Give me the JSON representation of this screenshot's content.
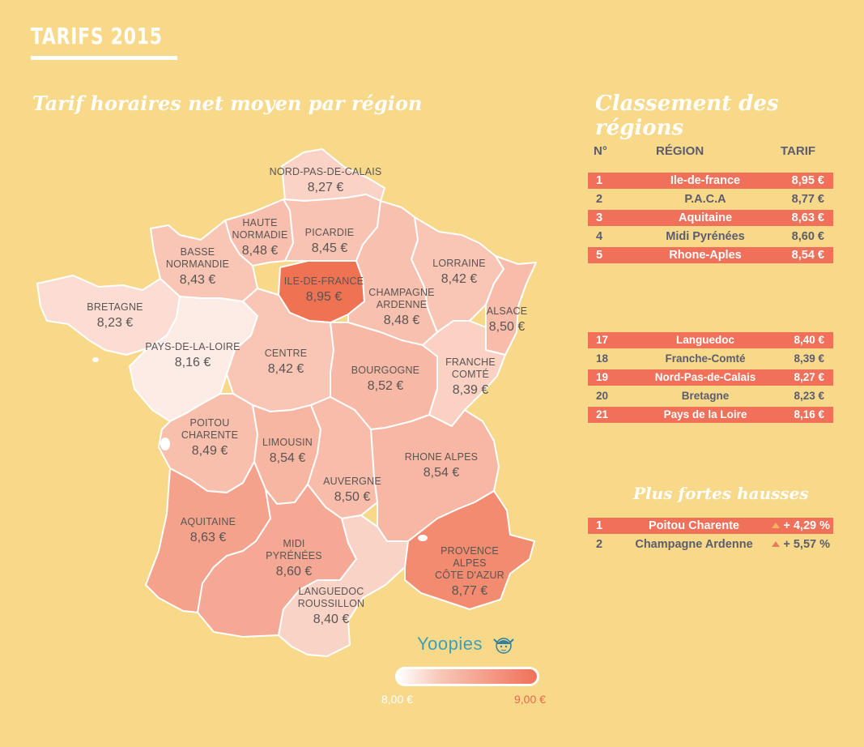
{
  "header": {
    "title": "TARIFS 2015"
  },
  "map": {
    "title": "Tarif horaires net moyen par région",
    "regions": [
      {
        "name": "NORD-PAS-DE-CALAIS",
        "value": "8,27 €",
        "color": "#fbd3c6"
      },
      {
        "name": "HAUTE\nNORMADIE",
        "value": "8,48 €",
        "color": "#f8bfae"
      },
      {
        "name": "PICARDIE",
        "value": "8,45 €",
        "color": "#f8c3b2"
      },
      {
        "name": "BASSE\nNORMANDIE",
        "value": "8,43 €",
        "color": "#f9c5b4"
      },
      {
        "name": "ILE-DE-FRANCE",
        "value": "8,95 €",
        "color": "#ef7252"
      },
      {
        "name": "CHAMPAGNE\nARDENNE",
        "value": "8,48 €",
        "color": "#f8c0ae"
      },
      {
        "name": "LORRAINE",
        "value": "8,42 €",
        "color": "#f9c6b6"
      },
      {
        "name": "ALSACE",
        "value": "8,50 €",
        "color": "#f8bcab"
      },
      {
        "name": "BRETAGNE",
        "value": "8,23 €",
        "color": "#fcdcd3"
      },
      {
        "name": "PAYS-DE-LA-LOIRE",
        "value": "8,16 €",
        "color": "#fdebe6"
      },
      {
        "name": "CENTRE",
        "value": "8,42 €",
        "color": "#f9c6b6"
      },
      {
        "name": "BOURGOGNE",
        "value": "8,52 €",
        "color": "#f7b9a6"
      },
      {
        "name": "FRANCHE\nCOMTÉ",
        "value": "8,39 €",
        "color": "#fad1c3"
      },
      {
        "name": "POITOU\nCHARENTE",
        "value": "8,49 €",
        "color": "#f8bfad"
      },
      {
        "name": "LIMOUSIN",
        "value": "8,54 €",
        "color": "#f7b6a2"
      },
      {
        "name": "RHONE ALPES",
        "value": "8,54 €",
        "color": "#f7b7a4"
      },
      {
        "name": "AUVERGNE",
        "value": "8,50 €",
        "color": "#f8bcab"
      },
      {
        "name": "AQUITAINE",
        "value": "8,63 €",
        "color": "#f4a28c"
      },
      {
        "name": "MIDI\nPYRÉNÉES",
        "value": "8,60 €",
        "color": "#f5a894"
      },
      {
        "name": "PROVENCE\nALPES\nCÔTE D'AZUR",
        "value": "8,77 €",
        "color": "#f28b6f"
      },
      {
        "name": "LANGUEDOC\nROUSSILLON",
        "value": "8,40 €",
        "color": "#fad3c7"
      }
    ]
  },
  "ranking": {
    "title": "Classement des régions",
    "headers": {
      "rank": "N°",
      "region": "RÉGION",
      "price": "TARIF"
    },
    "top": [
      {
        "rank": "1",
        "region": "Ile-de-france",
        "price": "8,95 €"
      },
      {
        "rank": "2",
        "region": "P.A.C.A",
        "price": "8,77 €"
      },
      {
        "rank": "3",
        "region": "Aquitaine",
        "price": "8,63 €"
      },
      {
        "rank": "4",
        "region": "Midi Pyrénées",
        "price": "8,60 €"
      },
      {
        "rank": "5",
        "region": "Rhone-Aples",
        "price": "8,54 €"
      }
    ],
    "bottom": [
      {
        "rank": "17",
        "region": "Languedoc",
        "price": "8,40 €"
      },
      {
        "rank": "18",
        "region": "Franche-Comté",
        "price": "8,39 €"
      },
      {
        "rank": "19",
        "region": "Nord-Pas-de-Calais",
        "price": "8,27 €"
      },
      {
        "rank": "20",
        "region": "Bretagne",
        "price": "8,23 €"
      },
      {
        "rank": "21",
        "region": "Pays de la Loire",
        "price": "8,16 €"
      }
    ]
  },
  "increases": {
    "title": "Plus fortes hausses",
    "items": [
      {
        "rank": "1",
        "region": "Poitou Charente",
        "change": "+ 4,29 %"
      },
      {
        "rank": "2",
        "region": "Champagne Ardenne",
        "change": "+ 5,57 %"
      }
    ]
  },
  "legend": {
    "min": "8,00 €",
    "max": "9,00 €",
    "colors": {
      "min": "#ffffff",
      "max": "#f0705a"
    }
  },
  "brand": {
    "name": "Yoopies"
  },
  "colors": {
    "background": "#f8d98a",
    "highlight": "#f0705a",
    "text": "#5c5c6e"
  }
}
